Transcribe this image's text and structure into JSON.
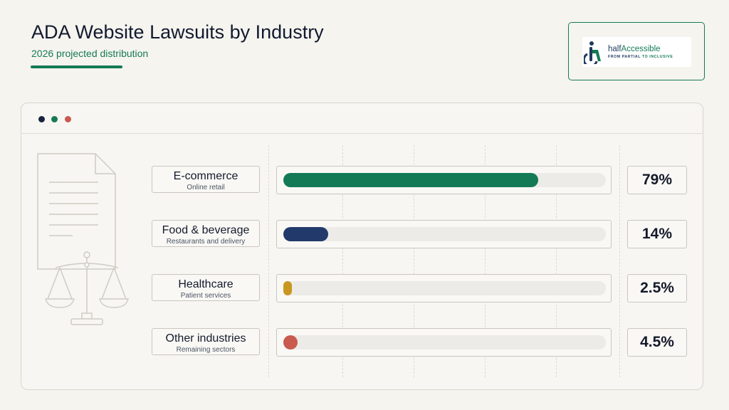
{
  "header": {
    "title": "ADA Website Lawsuits by Industry",
    "subtitle": "2026 projected distribution"
  },
  "brand": {
    "name_part1": "half",
    "name_part2": "Accessible",
    "tagline_part1": "FROM PARTIAL ",
    "tagline_part2": "TO INCLUSIVE"
  },
  "window_dots": [
    "#17223d",
    "#137a55",
    "#c95a4f"
  ],
  "decoration_icons": [
    "document-icon",
    "scales-of-justice-icon"
  ],
  "chart_data": {
    "type": "bar",
    "orientation": "horizontal",
    "title": "ADA Website Lawsuits by Industry",
    "subtitle": "2026 projected distribution",
    "unit": "%",
    "xlim": [
      0,
      100
    ],
    "grid": true,
    "categories": [
      "E-commerce",
      "Food & beverage",
      "Healthcare",
      "Other industries"
    ],
    "descriptions": [
      "Online retail",
      "Restaurants and delivery",
      "Patient services",
      "Remaining sectors"
    ],
    "values": [
      79,
      14,
      2.5,
      4.5
    ],
    "value_labels": [
      "79%",
      "14%",
      "2.5%",
      "4.5%"
    ],
    "colors": [
      "#137a55",
      "#213a6b",
      "#c9961f",
      "#c95a4f"
    ]
  }
}
